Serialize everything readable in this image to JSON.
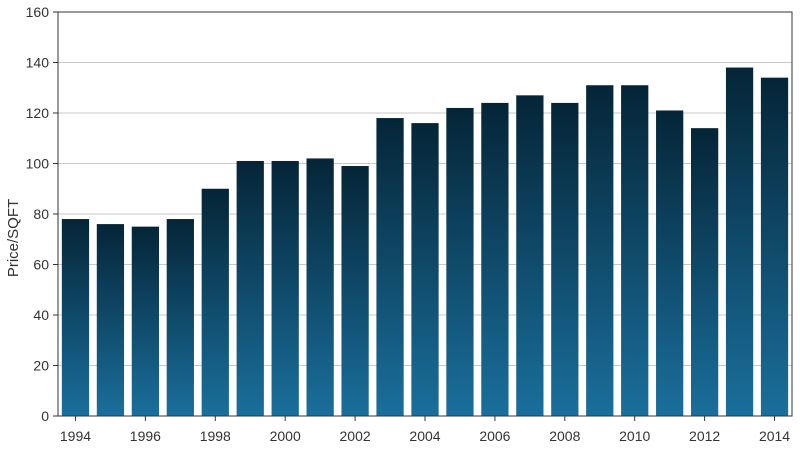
{
  "chart_data": {
    "type": "bar",
    "title": "",
    "xlabel": "",
    "ylabel": "Price/SQFT",
    "ylim": [
      0,
      160
    ],
    "yticks": [
      0,
      20,
      40,
      60,
      80,
      100,
      120,
      140,
      160
    ],
    "xtick_labels": [
      "1994",
      "1996",
      "1998",
      "2000",
      "2002",
      "2004",
      "2006",
      "2008",
      "2010",
      "2012",
      "2014"
    ],
    "grid": true,
    "categories": [
      "1994",
      "1995",
      "1996",
      "1997",
      "1998",
      "1999",
      "2000",
      "2001",
      "2002",
      "2003",
      "2004",
      "2005",
      "2006",
      "2007",
      "2008",
      "2009",
      "2010",
      "2011",
      "2012",
      "2013",
      "2014"
    ],
    "values": [
      78,
      76,
      75,
      78,
      90,
      101,
      101,
      102,
      99,
      118,
      116,
      122,
      124,
      127,
      124,
      131,
      131,
      121,
      114,
      138,
      134
    ],
    "colors": {
      "bar_top": "#052537",
      "bar_bottom": "#1a6f9c",
      "grid": "#c8c8c8",
      "axis": "#333333"
    }
  }
}
